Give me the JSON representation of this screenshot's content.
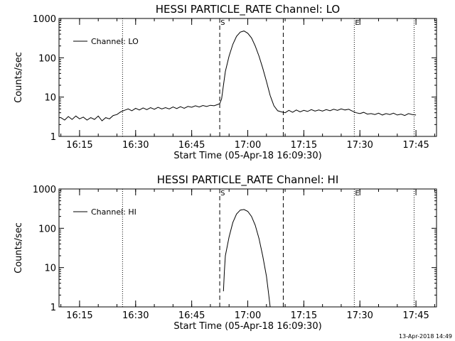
{
  "timestamp": "13-Apr-2018 14:49",
  "chart_data": [
    {
      "type": "line",
      "title": "HESSI PARTICLE_RATE Channel: LO",
      "xlabel": "Start Time (05-Apr-18 16:09:30)",
      "ylabel": "Counts/sec",
      "yscale": "log",
      "ylim": [
        1,
        1000
      ],
      "xlim": [
        "16:09:30",
        "17:50:30"
      ],
      "x_tick_labels": [
        "16:15",
        "16:30",
        "16:45",
        "17:00",
        "17:15",
        "17:30",
        "17:45"
      ],
      "y_tick_labels": [
        "1",
        "10",
        "100",
        "1000"
      ],
      "legend": {
        "label": "Channel: LO",
        "position": "top-left"
      },
      "markers": [
        {
          "time": "16:26:30",
          "style": "dotted",
          "label": ""
        },
        {
          "time": "16:52:30",
          "style": "dashed",
          "label": "S"
        },
        {
          "time": "17:09:30",
          "style": "dashed",
          "label": ""
        },
        {
          "time": "17:28:30",
          "style": "dotted",
          "label": "E"
        },
        {
          "time": "17:44:30",
          "style": "dotted",
          "label": ""
        }
      ],
      "series": [
        {
          "name": "Channel: LO",
          "points": [
            [
              "16:10:00",
              3.0
            ],
            [
              "16:11:00",
              2.6
            ],
            [
              "16:12:00",
              3.2
            ],
            [
              "16:13:00",
              2.7
            ],
            [
              "16:14:00",
              3.3
            ],
            [
              "16:15:00",
              2.8
            ],
            [
              "16:16:00",
              3.1
            ],
            [
              "16:17:00",
              2.6
            ],
            [
              "16:18:00",
              3.0
            ],
            [
              "16:19:00",
              2.7
            ],
            [
              "16:20:00",
              3.3
            ],
            [
              "16:21:00",
              2.5
            ],
            [
              "16:22:00",
              3.0
            ],
            [
              "16:23:00",
              2.8
            ],
            [
              "16:24:00",
              3.4
            ],
            [
              "16:25:00",
              3.6
            ],
            [
              "16:26:00",
              4.2
            ],
            [
              "16:27:00",
              4.6
            ],
            [
              "16:28:00",
              5.0
            ],
            [
              "16:29:00",
              4.5
            ],
            [
              "16:30:00",
              5.2
            ],
            [
              "16:31:00",
              4.7
            ],
            [
              "16:32:00",
              5.3
            ],
            [
              "16:33:00",
              4.8
            ],
            [
              "16:34:00",
              5.4
            ],
            [
              "16:35:00",
              4.9
            ],
            [
              "16:36:00",
              5.5
            ],
            [
              "16:37:00",
              5.0
            ],
            [
              "16:38:00",
              5.4
            ],
            [
              "16:39:00",
              5.0
            ],
            [
              "16:40:00",
              5.6
            ],
            [
              "16:41:00",
              5.1
            ],
            [
              "16:42:00",
              5.7
            ],
            [
              "16:43:00",
              5.2
            ],
            [
              "16:44:00",
              5.8
            ],
            [
              "16:45:00",
              5.5
            ],
            [
              "16:46:00",
              6.0
            ],
            [
              "16:47:00",
              5.6
            ],
            [
              "16:48:00",
              6.1
            ],
            [
              "16:49:00",
              5.8
            ],
            [
              "16:50:00",
              6.2
            ],
            [
              "16:51:00",
              6.0
            ],
            [
              "16:52:00",
              6.5
            ],
            [
              "16:52:30",
              6.8
            ],
            [
              "16:53:00",
              9.0
            ],
            [
              "16:53:30",
              20
            ],
            [
              "16:54:00",
              45
            ],
            [
              "16:55:00",
              110
            ],
            [
              "16:56:00",
              220
            ],
            [
              "16:57:00",
              350
            ],
            [
              "16:58:00",
              450
            ],
            [
              "16:59:00",
              480
            ],
            [
              "17:00:00",
              420
            ],
            [
              "17:01:00",
              320
            ],
            [
              "17:02:00",
              200
            ],
            [
              "17:03:00",
              110
            ],
            [
              "17:04:00",
              55
            ],
            [
              "17:05:00",
              25
            ],
            [
              "17:06:00",
              11
            ],
            [
              "17:07:00",
              6.0
            ],
            [
              "17:08:00",
              4.5
            ],
            [
              "17:09:00",
              4.2
            ],
            [
              "17:10:00",
              4.0
            ],
            [
              "17:11:00",
              4.6
            ],
            [
              "17:12:00",
              4.1
            ],
            [
              "17:13:00",
              4.7
            ],
            [
              "17:14:00",
              4.2
            ],
            [
              "17:15:00",
              4.6
            ],
            [
              "17:16:00",
              4.3
            ],
            [
              "17:17:00",
              4.8
            ],
            [
              "17:18:00",
              4.4
            ],
            [
              "17:19:00",
              4.7
            ],
            [
              "17:20:00",
              4.4
            ],
            [
              "17:21:00",
              4.8
            ],
            [
              "17:22:00",
              4.5
            ],
            [
              "17:23:00",
              4.9
            ],
            [
              "17:24:00",
              4.6
            ],
            [
              "17:25:00",
              5.0
            ],
            [
              "17:26:00",
              4.7
            ],
            [
              "17:27:00",
              4.9
            ],
            [
              "17:28:00",
              4.4
            ],
            [
              "17:29:00",
              4.0
            ],
            [
              "17:30:00",
              3.8
            ],
            [
              "17:31:00",
              4.1
            ],
            [
              "17:32:00",
              3.7
            ],
            [
              "17:33:00",
              3.8
            ],
            [
              "17:34:00",
              3.6
            ],
            [
              "17:35:00",
              3.9
            ],
            [
              "17:36:00",
              3.5
            ],
            [
              "17:37:00",
              3.8
            ],
            [
              "17:38:00",
              3.6
            ],
            [
              "17:39:00",
              3.9
            ],
            [
              "17:40:00",
              3.5
            ],
            [
              "17:41:00",
              3.7
            ],
            [
              "17:42:00",
              3.4
            ],
            [
              "17:43:00",
              3.8
            ],
            [
              "17:44:00",
              3.6
            ],
            [
              "17:45:00",
              3.5
            ]
          ]
        }
      ]
    },
    {
      "type": "line",
      "title": "HESSI PARTICLE_RATE Channel: HI",
      "xlabel": "Start Time (05-Apr-18 16:09:30)",
      "ylabel": "Counts/sec",
      "yscale": "log",
      "ylim": [
        1,
        1000
      ],
      "xlim": [
        "16:09:30",
        "17:50:30"
      ],
      "x_tick_labels": [
        "16:15",
        "16:30",
        "16:45",
        "17:00",
        "17:15",
        "17:30",
        "17:45"
      ],
      "y_tick_labels": [
        "1",
        "10",
        "100",
        "1000"
      ],
      "legend": {
        "label": "Channel: HI",
        "position": "top-left"
      },
      "markers": [
        {
          "time": "16:26:30",
          "style": "dotted",
          "label": ""
        },
        {
          "time": "16:52:30",
          "style": "dashed",
          "label": "S"
        },
        {
          "time": "17:09:30",
          "style": "dashed",
          "label": ""
        },
        {
          "time": "17:28:30",
          "style": "dotted",
          "label": "E"
        },
        {
          "time": "17:44:30",
          "style": "dotted",
          "label": ""
        }
      ],
      "series": [
        {
          "name": "Channel: HI",
          "points": [
            [
              "16:53:30",
              2.5
            ],
            [
              "16:53:45",
              8
            ],
            [
              "16:54:00",
              20
            ],
            [
              "16:55:00",
              60
            ],
            [
              "16:56:00",
              140
            ],
            [
              "16:57:00",
              230
            ],
            [
              "16:58:00",
              290
            ],
            [
              "16:59:00",
              300
            ],
            [
              "17:00:00",
              270
            ],
            [
              "17:01:00",
              200
            ],
            [
              "17:02:00",
              120
            ],
            [
              "17:03:00",
              55
            ],
            [
              "17:04:00",
              20
            ],
            [
              "17:05:00",
              6
            ],
            [
              "17:05:30",
              2.5
            ],
            [
              "17:06:00",
              1.0
            ]
          ]
        }
      ]
    }
  ]
}
